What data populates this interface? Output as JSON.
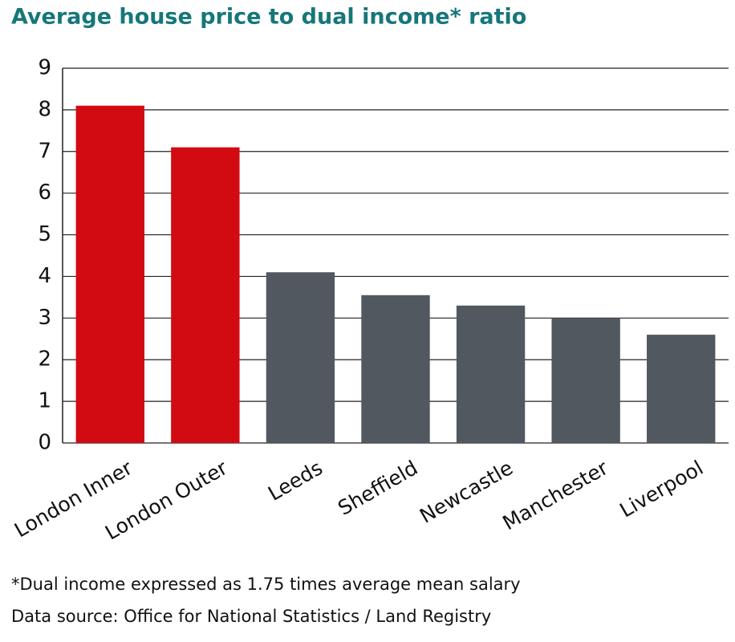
{
  "chart_data": {
    "type": "bar",
    "title": "Average house price to dual income* ratio",
    "categories": [
      "London Inner",
      "London Outer",
      "Leeds",
      "Sheffield",
      "Newcastle",
      "Manchester",
      "Liverpool"
    ],
    "values": [
      8.1,
      7.1,
      4.1,
      3.55,
      3.3,
      3.0,
      2.6
    ],
    "colors": [
      "#d20a11",
      "#d20a11",
      "#525860",
      "#525860",
      "#525860",
      "#525860",
      "#525860"
    ],
    "ylim": [
      0,
      9
    ],
    "yticks": [
      0,
      1,
      2,
      3,
      4,
      5,
      6,
      7,
      8,
      9
    ],
    "grid": true,
    "notes": [
      "*Dual income expressed as 1.75 times average mean salary",
      "Data source: Office for National Statistics / Land Registry"
    ]
  }
}
